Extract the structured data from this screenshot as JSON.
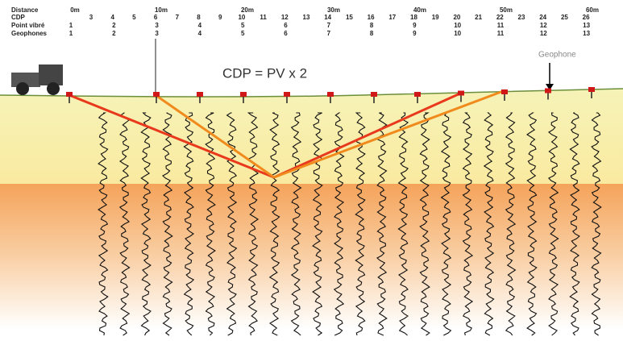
{
  "header": {
    "labels": [
      "Distance",
      "CDP",
      "Point vibré",
      "Geophones"
    ]
  },
  "distance": [
    "0m",
    "10m",
    "20m",
    "30m",
    "40m",
    "50m",
    "60m"
  ],
  "cdp": [
    "3",
    "4",
    "5",
    "6",
    "7",
    "8",
    "9",
    "10",
    "11",
    "12",
    "13",
    "14",
    "15",
    "16",
    "17",
    "18",
    "19",
    "20",
    "21",
    "22",
    "23",
    "24",
    "25",
    "26"
  ],
  "point_vibre": [
    "1",
    "2",
    "3",
    "4",
    "5",
    "6",
    "7",
    "8",
    "9",
    "10",
    "11",
    "12",
    "13"
  ],
  "geophones": [
    "1",
    "2",
    "3",
    "4",
    "5",
    "6",
    "7",
    "8",
    "9",
    "10",
    "11",
    "12",
    "13"
  ],
  "formula": "CDP = PV x 2",
  "geophone_label": "Geophone"
}
